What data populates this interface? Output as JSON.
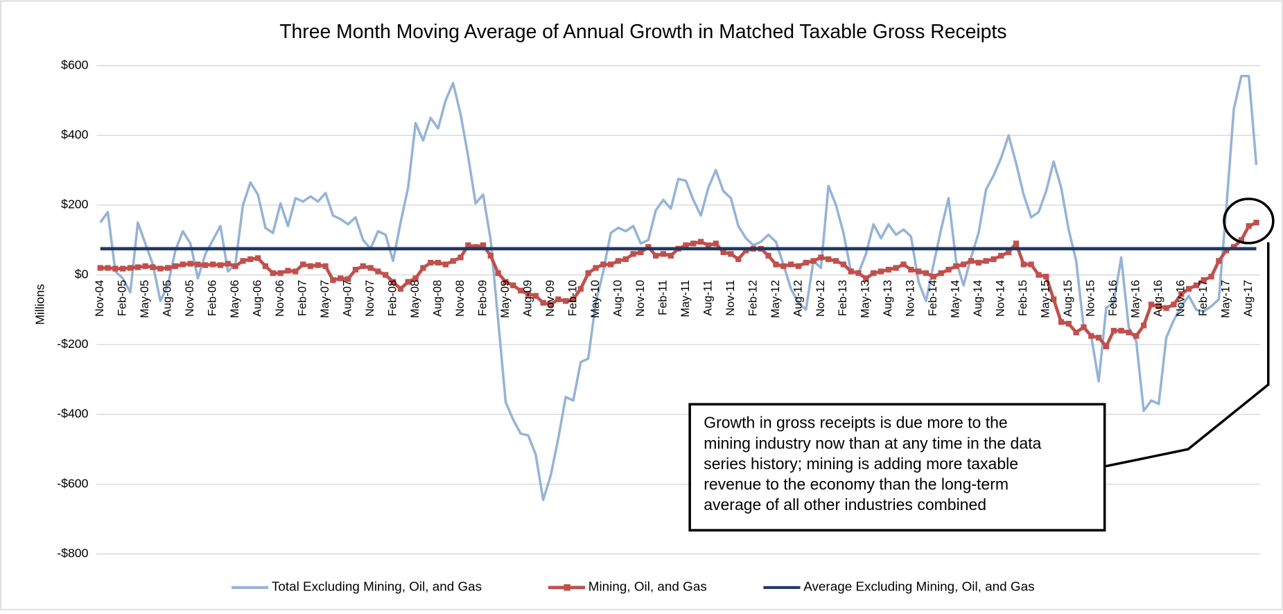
{
  "chart_data": {
    "type": "line",
    "title": "Three Month Moving Average of Annual Growth in Matched Taxable Gross Receipts",
    "y_label": "Millions",
    "categories": [
      "Nov-04",
      null,
      null,
      "Feb-05",
      null,
      null,
      "May-05",
      null,
      null,
      "Aug-05",
      null,
      null,
      "Nov-05",
      null,
      null,
      "Feb-06",
      null,
      null,
      "May-06",
      null,
      null,
      "Aug-06",
      null,
      null,
      "Nov-06",
      null,
      null,
      "Feb-07",
      null,
      null,
      "May-07",
      null,
      null,
      "Aug-07",
      null,
      null,
      "Nov-07",
      null,
      null,
      "Feb-08",
      null,
      null,
      "May-08",
      null,
      null,
      "Aug-08",
      null,
      null,
      "Nov-08",
      null,
      null,
      "Feb-09",
      null,
      null,
      "May-09",
      null,
      null,
      "Aug-09",
      null,
      null,
      "Nov-09",
      null,
      null,
      "Feb-10",
      null,
      null,
      "May-10",
      null,
      null,
      "Aug-10",
      null,
      null,
      "Nov-10",
      null,
      null,
      "Feb-11",
      null,
      null,
      "May-11",
      null,
      null,
      "Aug-11",
      null,
      null,
      "Nov-11",
      null,
      null,
      "Feb-12",
      null,
      null,
      "May-12",
      null,
      null,
      "Aug-12",
      null,
      null,
      "Nov-12",
      null,
      null,
      "Feb-13",
      null,
      null,
      "May-13",
      null,
      null,
      "Aug-13",
      null,
      null,
      "Nov-13",
      null,
      null,
      "Feb-14",
      null,
      null,
      "May-14",
      null,
      null,
      "Aug-14",
      null,
      null,
      "Nov-14",
      null,
      null,
      "Feb-15",
      null,
      null,
      "May-15",
      null,
      null,
      "Aug-15",
      null,
      null,
      "Nov-15",
      null,
      null,
      "Feb-16",
      null,
      null,
      "May-16",
      null,
      null,
      "Aug-16",
      null,
      null,
      "Nov-16",
      null,
      null,
      "Feb-17",
      null,
      null,
      "May-17",
      null,
      null,
      "Aug-17",
      null
    ],
    "series": [
      {
        "name": "Total Excluding Mining, Oil, and Gas",
        "color": "#95b3d7",
        "values": [
          150,
          180,
          10,
          -10,
          -50,
          150,
          90,
          30,
          -75,
          -30,
          70,
          125,
          90,
          -10,
          60,
          100,
          140,
          10,
          30,
          200,
          265,
          230,
          135,
          120,
          205,
          140,
          220,
          210,
          225,
          210,
          235,
          170,
          160,
          145,
          165,
          100,
          75,
          125,
          115,
          40,
          150,
          250,
          435,
          385,
          450,
          420,
          500,
          550,
          460,
          340,
          205,
          230,
          100,
          -130,
          -365,
          -415,
          -455,
          -460,
          -515,
          -645,
          -575,
          -470,
          -350,
          -360,
          -250,
          -240,
          -80,
          10,
          120,
          135,
          125,
          140,
          90,
          100,
          185,
          215,
          190,
          275,
          270,
          215,
          170,
          250,
          300,
          240,
          220,
          140,
          105,
          85,
          95,
          115,
          95,
          30,
          -40,
          -80,
          -100,
          40,
          20,
          255,
          200,
          120,
          10,
          5,
          60,
          145,
          105,
          145,
          115,
          130,
          110,
          -20,
          -75,
          30,
          130,
          220,
          40,
          -30,
          50,
          120,
          245,
          285,
          335,
          400,
          320,
          230,
          165,
          180,
          240,
          325,
          250,
          130,
          40,
          -150,
          -175,
          -305,
          -95,
          -80,
          50,
          -150,
          -190,
          -390,
          -360,
          -370,
          -180,
          -130,
          -90,
          -60,
          -100,
          -105,
          -90,
          -70,
          190,
          475,
          570,
          570,
          315
        ]
      },
      {
        "name": "Mining, Oil, and Gas",
        "color": "#c0504d",
        "marker": "square",
        "values": [
          20,
          20,
          18,
          18,
          20,
          22,
          25,
          22,
          18,
          20,
          25,
          30,
          32,
          30,
          28,
          30,
          28,
          32,
          25,
          40,
          45,
          48,
          25,
          5,
          5,
          12,
          10,
          30,
          25,
          28,
          25,
          -15,
          -10,
          -12,
          15,
          25,
          20,
          10,
          0,
          -20,
          -40,
          -20,
          -10,
          20,
          35,
          35,
          30,
          40,
          50,
          85,
          80,
          85,
          55,
          5,
          -20,
          -30,
          -45,
          -55,
          -60,
          -80,
          -85,
          -70,
          -75,
          -70,
          -40,
          5,
          20,
          30,
          30,
          40,
          45,
          60,
          65,
          80,
          55,
          60,
          55,
          75,
          85,
          90,
          95,
          85,
          90,
          65,
          60,
          45,
          70,
          75,
          75,
          55,
          30,
          25,
          30,
          25,
          35,
          40,
          50,
          45,
          40,
          30,
          10,
          5,
          -10,
          5,
          10,
          15,
          20,
          30,
          15,
          10,
          5,
          -5,
          5,
          15,
          25,
          30,
          40,
          35,
          40,
          45,
          55,
          65,
          90,
          30,
          30,
          0,
          -5,
          -70,
          -135,
          -140,
          -165,
          -150,
          -175,
          -180,
          -205,
          -160,
          -160,
          -165,
          -175,
          -145,
          -85,
          -90,
          -95,
          -85,
          -55,
          -40,
          -30,
          -15,
          -5,
          40,
          70,
          80,
          100,
          140,
          150
        ]
      },
      {
        "name": "Average Excluding Mining, Oil, and Gas",
        "color": "#1f3864",
        "value": 75
      }
    ],
    "ylim": [
      -800,
      600
    ],
    "yticks": [
      {
        "value": -800,
        "label": "-$800"
      },
      {
        "value": -600,
        "label": "-$600"
      },
      {
        "value": -400,
        "label": "-$400"
      },
      {
        "value": -200,
        "label": "-$200"
      },
      {
        "value": 0,
        "label": "$0"
      },
      {
        "value": 200,
        "label": "$200"
      },
      {
        "value": 400,
        "label": "$400"
      },
      {
        "value": 600,
        "label": "$600"
      }
    ],
    "grid": true,
    "legend": "bottom",
    "annotation": [
      "Growth in gross receipts is due more to the",
      "mining industry now than at any time in the data",
      "series history; mining is adding more taxable",
      "revenue to the economy than the long-term",
      "average of all other industries combined"
    ]
  }
}
